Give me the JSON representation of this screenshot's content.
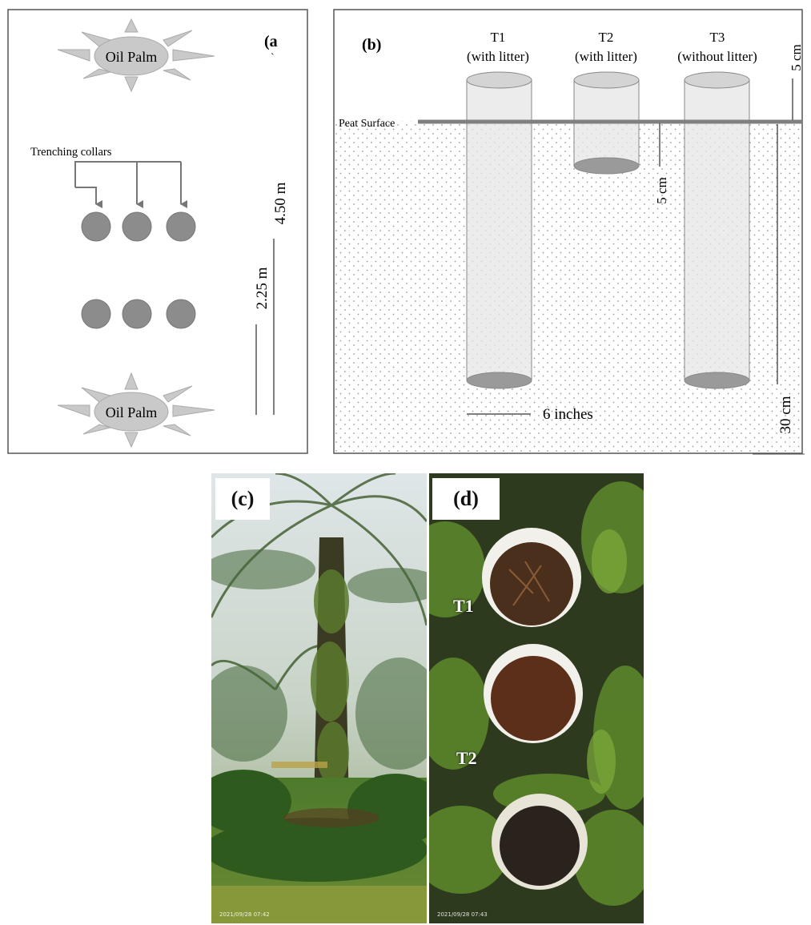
{
  "panel_a": {
    "tag": "(a",
    "tick": "`",
    "palm_top_label": "Oil Palm",
    "palm_bottom_label": "Oil Palm",
    "collars_label": "Trenching collars",
    "dim_outer": "4.50 m",
    "dim_inner": "2.25 m"
  },
  "panel_b": {
    "tag": "(b)",
    "surface_label": "Peat Surface",
    "t1_name": "T1",
    "t1_desc": "(with litter)",
    "t2_name": "T2",
    "t2_desc": "(with litter)",
    "t3_name": "T3",
    "t3_desc": "(without litter)",
    "dim_top": "5 cm",
    "dim_t2_depth": "5 cm",
    "dim_deep": "30 cm",
    "dim_diameter": "6 inches"
  },
  "panel_c": {
    "tag": "(c)",
    "timestamp": "2021/09/28 07:42"
  },
  "panel_d": {
    "tag": "(d)",
    "label_t1": "T1",
    "label_t2": "T2",
    "timestamp": "2021/09/28 07:43"
  },
  "colors": {
    "palm_fill": "#c9c9c9",
    "collar_fill": "#8c8c8c",
    "cylinder_fill": "#e6e6e6",
    "surface_line": "#808080",
    "photo_sky": "#e9eef0",
    "foliage": "#3f6b2c",
    "soil": "#4a2f1d"
  }
}
